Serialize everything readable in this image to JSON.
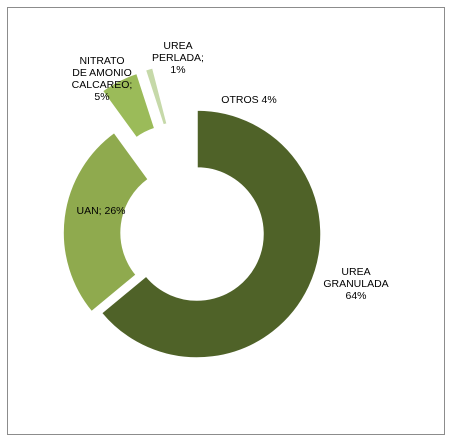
{
  "chart_data": {
    "type": "pie",
    "variant": "donut-exploded",
    "title": "",
    "legend": "none",
    "slices": [
      {
        "name": "UREA GRANULADA",
        "value": 64,
        "color": "#4f6228",
        "label_lines": [
          "UREA",
          "GRANULADA",
          "64%"
        ]
      },
      {
        "name": "UAN",
        "value": 26,
        "color": "#8faa4e",
        "label_lines": [
          "UAN; 26%"
        ]
      },
      {
        "name": "NITRATO DE AMONIO CALCAREO",
        "value": 5,
        "color": "#9bbb59",
        "label_lines": [
          "NITRATO",
          "DE AMONIO",
          "CALCAREO;",
          "5%"
        ]
      },
      {
        "name": "UREA PERLADA",
        "value": 1,
        "color": "#c6d9a9",
        "label_lines": [
          "UREA",
          "PERLADA;",
          "1%"
        ]
      },
      {
        "name": "OTROS",
        "value": 4,
        "color": "#ffffff",
        "label_lines": [
          "OTROS 4%"
        ]
      }
    ]
  }
}
